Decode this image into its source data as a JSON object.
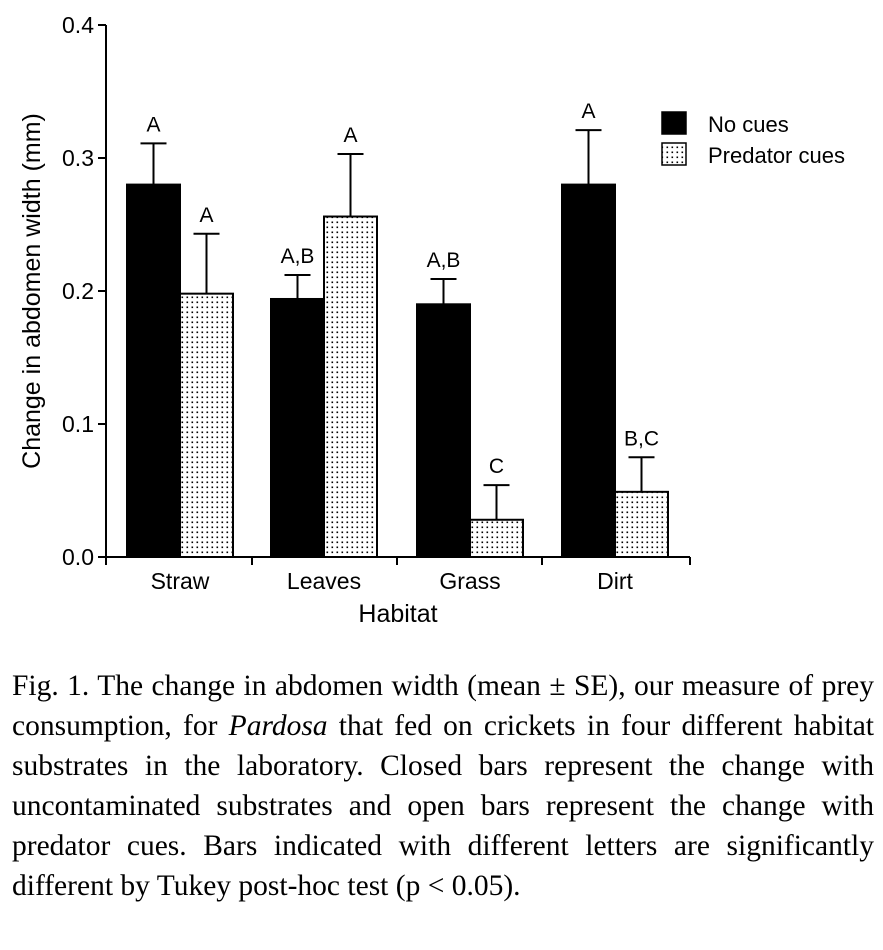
{
  "chart_data": {
    "type": "bar",
    "categories": [
      "Straw",
      "Leaves",
      "Grass",
      "Dirt"
    ],
    "series": [
      {
        "name": "No cues",
        "color": "#000000",
        "fill": "solid-black",
        "values": [
          0.28,
          0.194,
          0.19,
          0.28
        ],
        "se": [
          0.031,
          0.018,
          0.019,
          0.041
        ],
        "letters": [
          "A",
          "A,B",
          "A,B",
          "A"
        ]
      },
      {
        "name": "Predator cues",
        "color": "#ffffff",
        "fill": "dotted",
        "values": [
          0.198,
          0.256,
          0.028,
          0.049
        ],
        "se": [
          0.045,
          0.047,
          0.026,
          0.026
        ],
        "letters": [
          "A",
          "A",
          "C",
          "B,C"
        ]
      }
    ],
    "xlabel": "Habitat",
    "ylabel": "Change in abdomen width (mm)",
    "ylim": [
      0,
      0.4
    ],
    "yticks": [
      "0.0",
      "0.1",
      "0.2",
      "0.3",
      "0.4"
    ],
    "grid": false,
    "legend_position": "top-right"
  },
  "caption": {
    "before": "Fig. 1. The change in abdomen width (mean ± SE), our measure of prey consumption, for ",
    "italic": "Pardosa",
    "after": " that fed on crickets in four different habitat substrates in the laboratory. Closed bars represent the change with uncontaminated substrates and open bars represent the change with predator cues. Bars indicated with different letters are significantly different by Tukey post-hoc test (p < 0.05)."
  }
}
